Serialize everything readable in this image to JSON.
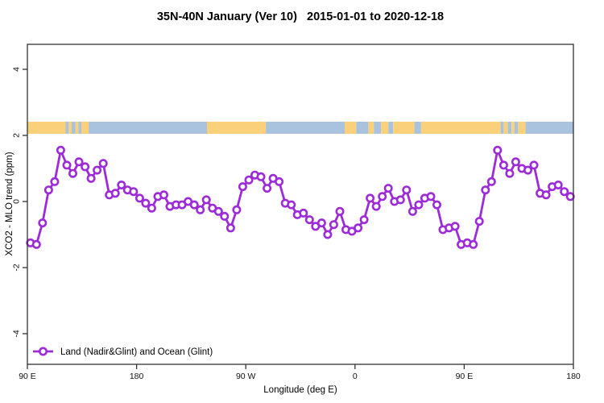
{
  "colors": {
    "series_purple": "#9D2BD8",
    "land_orange": "#FAD17A",
    "ocean_blue": "#A9C3DF",
    "axis_gray": "#333333",
    "marker_fill": "#FFFFFF",
    "background": "#FFFFFF"
  },
  "legend": {
    "label": "Land (Nadir&Glint) and Ocean (Glint)"
  },
  "chart_data": {
    "type": "line",
    "title": "35N-40N January (Ver 10)   2015-01-01 to 2020-12-18",
    "xlabel": "Longitude (deg E)",
    "ylabel": "XCO2 - MLO trend (ppm)",
    "xlim": [
      90,
      540
    ],
    "ylim": [
      -5,
      5
    ],
    "grid": false,
    "legend_position": "bottom-left-inside",
    "x_ticks": [
      {
        "lon": 90,
        "label": "90 E"
      },
      {
        "lon": 180,
        "label": "180"
      },
      {
        "lon": 270,
        "label": "90 W"
      },
      {
        "lon": 360,
        "label": "0"
      },
      {
        "lon": 450,
        "label": "90 E"
      },
      {
        "lon": 540,
        "label": "180"
      }
    ],
    "y_ticks": [
      {
        "v": -4,
        "label": "-4"
      },
      {
        "v": -2,
        "label": "-2"
      },
      {
        "v": 0,
        "label": "0"
      },
      {
        "v": 2,
        "label": "2"
      },
      {
        "v": 4,
        "label": "4"
      }
    ],
    "series_name": "Land (Nadir&Glint) and Ocean (Glint)",
    "marker": "open-circle",
    "x_start": 92.5,
    "x_step": 5,
    "x": [
      92.5,
      97.5,
      102.5,
      107.5,
      112.5,
      117.5,
      122.5,
      127.5,
      132.5,
      137.5,
      142.5,
      147.5,
      152.5,
      157.5,
      162.5,
      167.5,
      172.5,
      177.5,
      182.5,
      187.5,
      192.5,
      197.5,
      202.5,
      207.5,
      212.5,
      217.5,
      222.5,
      227.5,
      232.5,
      237.5,
      242.5,
      247.5,
      252.5,
      257.5,
      262.5,
      267.5,
      272.5,
      277.5,
      282.5,
      287.5,
      292.5,
      297.5,
      302.5,
      307.5,
      312.5,
      317.5,
      322.5,
      327.5,
      332.5,
      337.5,
      342.5,
      347.5,
      352.5,
      357.5,
      362.5,
      367.5,
      372.5,
      377.5,
      382.5,
      387.5,
      392.5,
      397.5,
      402.5,
      407.5,
      412.5,
      417.5,
      422.5,
      427.5,
      432.5,
      437.5,
      442.5,
      447.5,
      452.5,
      457.5,
      462.5,
      467.5,
      472.5,
      477.5,
      482.5,
      487.5,
      492.5,
      497.5,
      502.5,
      507.5,
      512.5,
      517.5,
      522.5,
      527.5,
      532.5,
      537.5
    ],
    "values": [
      -1.25,
      -1.3,
      -0.65,
      0.35,
      0.6,
      1.55,
      1.1,
      0.85,
      1.2,
      1.05,
      0.7,
      0.95,
      1.15,
      0.2,
      0.25,
      0.5,
      0.35,
      0.3,
      0.1,
      -0.05,
      -0.2,
      0.15,
      0.2,
      -0.15,
      -0.1,
      -0.1,
      0,
      -0.1,
      -0.25,
      0.05,
      -0.2,
      -0.3,
      -0.45,
      -0.8,
      -0.25,
      0.45,
      0.65,
      0.8,
      0.75,
      0.4,
      0.7,
      0.6,
      -0.05,
      -0.1,
      -0.4,
      -0.35,
      -0.55,
      -0.75,
      -0.65,
      -1,
      -0.7,
      -0.3,
      -0.85,
      -0.9,
      -0.8,
      -0.55,
      0.1,
      -0.15,
      0.15,
      0.4,
      0,
      0.05,
      0.35,
      -0.3,
      -0.1,
      0.1,
      0.15,
      -0.1,
      -0.85,
      -0.8,
      -0.75,
      -1.3,
      -1.25,
      -1.3,
      -0.6,
      0.35,
      0.6,
      1.55,
      1.1,
      0.85,
      1.2,
      1,
      0.95,
      1.1,
      0.25,
      0.2,
      0.45,
      0.5,
      0.3,
      0.15
    ],
    "map_band": {
      "description": "land/ocean strip for 35N-40N",
      "value_range": [
        2.05,
        2.41
      ],
      "segments": [
        {
          "from": 90,
          "to": 121.5,
          "surface": "land"
        },
        {
          "from": 121.5,
          "to": 124,
          "surface": "ocean"
        },
        {
          "from": 124,
          "to": 126.5,
          "surface": "land"
        },
        {
          "from": 126.5,
          "to": 129.5,
          "surface": "ocean"
        },
        {
          "from": 129.5,
          "to": 132,
          "surface": "land"
        },
        {
          "from": 132,
          "to": 134.5,
          "surface": "ocean"
        },
        {
          "from": 134.5,
          "to": 140.5,
          "surface": "land"
        },
        {
          "from": 140.5,
          "to": 238,
          "surface": "ocean"
        },
        {
          "from": 238,
          "to": 286.5,
          "surface": "land"
        },
        {
          "from": 286.5,
          "to": 351.5,
          "surface": "ocean"
        },
        {
          "from": 351.5,
          "to": 361,
          "surface": "land"
        },
        {
          "from": 361,
          "to": 371,
          "surface": "ocean"
        },
        {
          "from": 371,
          "to": 375.5,
          "surface": "land"
        },
        {
          "from": 375.5,
          "to": 381.5,
          "surface": "ocean"
        },
        {
          "from": 381.5,
          "to": 387.5,
          "surface": "land"
        },
        {
          "from": 387.5,
          "to": 391.5,
          "surface": "ocean"
        },
        {
          "from": 391.5,
          "to": 409,
          "surface": "land"
        },
        {
          "from": 409,
          "to": 414.5,
          "surface": "ocean"
        },
        {
          "from": 414.5,
          "to": 480,
          "surface": "land"
        },
        {
          "from": 480,
          "to": 482.5,
          "surface": "ocean"
        },
        {
          "from": 482.5,
          "to": 486,
          "surface": "land"
        },
        {
          "from": 486,
          "to": 489,
          "surface": "ocean"
        },
        {
          "from": 489,
          "to": 491.5,
          "surface": "land"
        },
        {
          "from": 491.5,
          "to": 494.5,
          "surface": "ocean"
        },
        {
          "from": 494.5,
          "to": 500.5,
          "surface": "land"
        },
        {
          "from": 500.5,
          "to": 540,
          "surface": "ocean"
        }
      ]
    }
  }
}
